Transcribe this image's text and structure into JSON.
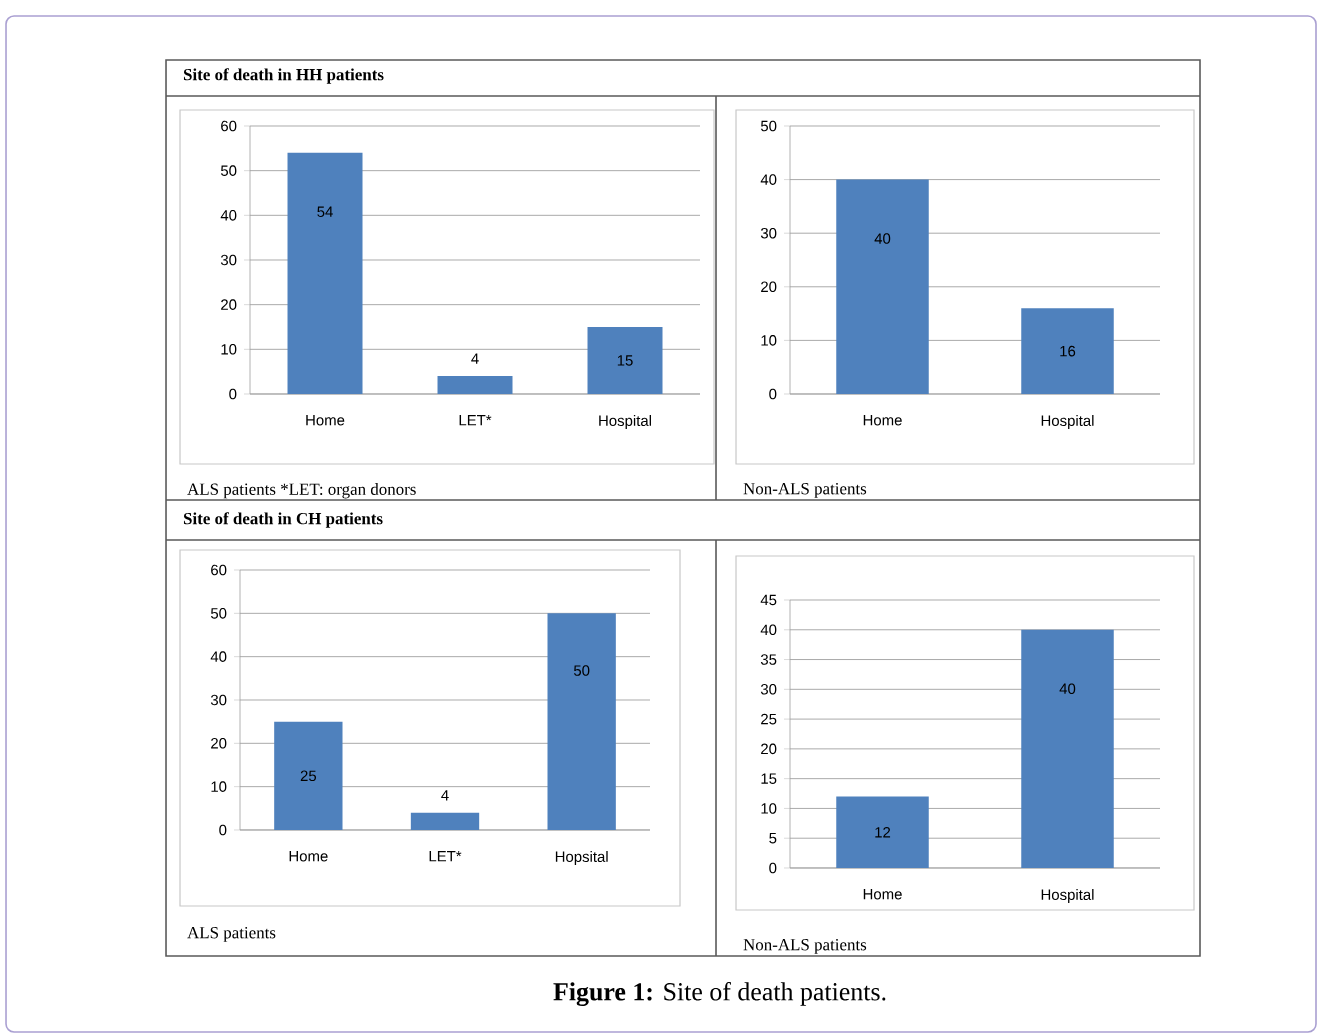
{
  "chart_data": [
    {
      "type": "bar",
      "title": "Site of death in HH patients",
      "categories": [
        "Home",
        "LET*",
        "Hospital"
      ],
      "values": [
        54,
        4,
        15
      ],
      "color": "#4f81bd",
      "ylim": [
        0,
        60
      ],
      "yticks": [
        0,
        10,
        20,
        30,
        40,
        50,
        60
      ],
      "grid": "y",
      "data_labels": true,
      "annotations": [
        "ALS patients *LET: organ donors"
      ]
    },
    {
      "type": "bar",
      "categories": [
        "Home",
        "Hospital"
      ],
      "values": [
        40,
        16
      ],
      "color": "#4f81bd",
      "ylim": [
        0,
        50
      ],
      "yticks": [
        0,
        10,
        20,
        30,
        40,
        50
      ],
      "grid": "y",
      "data_labels": true,
      "annotations": [
        "Non-ALS patients"
      ]
    },
    {
      "type": "bar",
      "title": "Site of death in CH patients",
      "categories": [
        "Home",
        "LET*",
        "Hopsital"
      ],
      "values": [
        25,
        4,
        50
      ],
      "color": "#4f81bd",
      "ylim": [
        0,
        60
      ],
      "yticks": [
        0,
        10,
        20,
        30,
        40,
        50,
        60
      ],
      "grid": "y",
      "data_labels": true,
      "annotations": [
        "ALS patients"
      ]
    },
    {
      "type": "bar",
      "categories": [
        "Home",
        "Hospital"
      ],
      "values": [
        12,
        40
      ],
      "color": "#4f81bd",
      "ylim": [
        0,
        45
      ],
      "yticks": [
        0,
        5,
        10,
        15,
        20,
        25,
        30,
        35,
        40,
        45
      ],
      "grid": "y",
      "data_labels": true,
      "annotations": [
        "Non-ALS patients",
        "**Figure 1:** Site of death patients."
      ]
    }
  ]
}
